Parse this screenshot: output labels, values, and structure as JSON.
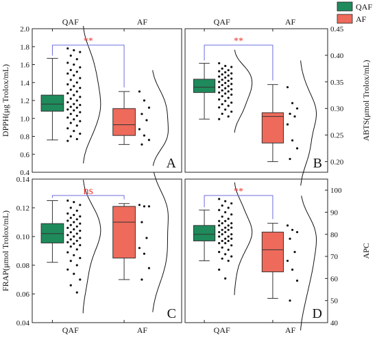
{
  "legend": [
    {
      "label": "QAF",
      "color": "#1f8a5b"
    },
    {
      "label": "AF",
      "color": "#ee6a5b"
    }
  ],
  "colors": {
    "bracket": "#6b6bdc",
    "sig": "#e8322b",
    "axis": "#222222"
  },
  "chart_data": [
    {
      "panel": "A",
      "type": "box",
      "position": "top-left",
      "ylabel": "DPPH(μg Trolox/mL)",
      "ylim": [
        0.4,
        2.0
      ],
      "yticks": [
        "0.4",
        "0.6",
        "0.8",
        "1.0",
        "1.2",
        "1.4",
        "1.6",
        "1.8",
        "2.0"
      ],
      "axis_side": "left",
      "categories": [
        "QAF",
        "AF"
      ],
      "category_labels_at": "top",
      "sig": "**",
      "boxes": [
        {
          "group": "QAF",
          "min": 0.76,
          "q1": 1.08,
          "median": 1.16,
          "q3": 1.26,
          "max": 1.67,
          "points": [
            1.78,
            1.76,
            1.74,
            1.7,
            1.66,
            1.62,
            1.6,
            1.57,
            1.54,
            1.52,
            1.5,
            1.48,
            1.45,
            1.43,
            1.4,
            1.38,
            1.36,
            1.34,
            1.32,
            1.3,
            1.28,
            1.26,
            1.24,
            1.22,
            1.2,
            1.18,
            1.16,
            1.15,
            1.13,
            1.12,
            1.1,
            1.09,
            1.07,
            1.05,
            1.03,
            1.01,
            0.99,
            0.97,
            0.95,
            0.92,
            0.89,
            0.86,
            0.83,
            0.8,
            0.77,
            0.75
          ]
        },
        {
          "group": "AF",
          "min": 0.71,
          "q1": 0.81,
          "median": 0.93,
          "q3": 1.11,
          "max": 1.3,
          "points": [
            1.3,
            1.2,
            1.12,
            1.05,
            0.98,
            0.88,
            0.81,
            0.76,
            0.71
          ]
        }
      ]
    },
    {
      "panel": "B",
      "type": "box",
      "position": "top-right",
      "ylabel": "ABTS(μmol Trolox/mL)",
      "ylim": [
        0.18,
        0.45
      ],
      "yticks": [
        "0.20",
        "0.25",
        "0.30",
        "0.35",
        "0.40",
        "0.45"
      ],
      "axis_side": "right",
      "categories": [
        "QAF",
        "AF"
      ],
      "category_labels_at": "top",
      "sig": "**",
      "boxes": [
        {
          "group": "QAF",
          "min": 0.28,
          "q1": 0.33,
          "median": 0.34,
          "q3": 0.355,
          "max": 0.385,
          "points": [
            0.385,
            0.38,
            0.378,
            0.375,
            0.372,
            0.37,
            0.368,
            0.366,
            0.364,
            0.362,
            0.36,
            0.358,
            0.356,
            0.354,
            0.352,
            0.35,
            0.348,
            0.346,
            0.344,
            0.342,
            0.34,
            0.338,
            0.336,
            0.334,
            0.332,
            0.33,
            0.328,
            0.326,
            0.323,
            0.32,
            0.317,
            0.314,
            0.311,
            0.308,
            0.305,
            0.302,
            0.298,
            0.294,
            0.29,
            0.285,
            0.28
          ]
        },
        {
          "group": "AF",
          "min": 0.2,
          "q1": 0.235,
          "median": 0.285,
          "q3": 0.292,
          "max": 0.345,
          "points": [
            0.34,
            0.31,
            0.3,
            0.29,
            0.285,
            0.27,
            0.24,
            0.225,
            0.205
          ]
        }
      ]
    },
    {
      "panel": "C",
      "type": "box",
      "position": "bottom-left",
      "ylabel": "FRAP(μmol Trolox/mL)",
      "ylim": [
        0.04,
        0.14
      ],
      "yticks": [
        "0.04",
        "0.06",
        "0.08",
        "0.10",
        "0.12",
        "0.14"
      ],
      "axis_side": "left",
      "categories": [
        "QAF",
        "AF"
      ],
      "category_labels_at": "bottom",
      "sig": "ns",
      "boxes": [
        {
          "group": "QAF",
          "min": 0.082,
          "q1": 0.0955,
          "median": 0.102,
          "q3": 0.109,
          "max": 0.125,
          "points": [
            0.125,
            0.124,
            0.122,
            0.12,
            0.118,
            0.116,
            0.115,
            0.114,
            0.113,
            0.112,
            0.111,
            0.11,
            0.109,
            0.108,
            0.107,
            0.106,
            0.105,
            0.104,
            0.103,
            0.102,
            0.101,
            0.1,
            0.099,
            0.098,
            0.097,
            0.096,
            0.095,
            0.094,
            0.093,
            0.091,
            0.089,
            0.087,
            0.085,
            0.083,
            0.08,
            0.077,
            0.074,
            0.07,
            0.066,
            0.061
          ]
        },
        {
          "group": "AF",
          "min": 0.07,
          "q1": 0.085,
          "median": 0.11,
          "q3": 0.121,
          "max": 0.123,
          "points": [
            0.122,
            0.121,
            0.121,
            0.11,
            0.099,
            0.092,
            0.088,
            0.078,
            0.07
          ]
        }
      ]
    },
    {
      "panel": "D",
      "type": "box",
      "position": "bottom-right",
      "ylabel": "APC",
      "ylim": [
        40,
        105
      ],
      "yticks": [
        "40",
        "50",
        "60",
        "70",
        "80",
        "90",
        "100"
      ],
      "axis_side": "right",
      "categories": [
        "QAF",
        "AF"
      ],
      "category_labels_at": "bottom",
      "sig": "**",
      "boxes": [
        {
          "group": "QAF",
          "min": 68,
          "q1": 77,
          "median": 80,
          "q3": 84,
          "max": 91,
          "points": [
            96,
            95,
            94,
            93,
            92,
            91,
            90,
            89,
            88,
            87,
            86,
            86,
            85,
            85,
            84,
            84,
            83,
            83,
            82,
            82,
            81,
            81,
            80,
            80,
            79,
            79,
            78,
            78,
            77,
            77,
            76,
            76,
            75,
            74,
            73,
            72,
            71,
            70,
            69,
            68,
            64,
            60
          ]
        },
        {
          "group": "AF",
          "min": 51,
          "q1": 63,
          "median": 73,
          "q3": 81,
          "max": 85,
          "points": [
            84,
            82,
            81,
            78,
            72,
            68,
            64,
            59,
            50
          ]
        }
      ]
    }
  ]
}
